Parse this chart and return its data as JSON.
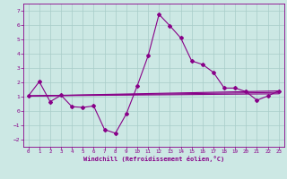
{
  "title": "",
  "xlabel": "Windchill (Refroidissement éolien,°C)",
  "background_color": "#cce8e4",
  "grid_color": "#a8ccc8",
  "line_color": "#880088",
  "xlim": [
    -0.5,
    23.5
  ],
  "ylim": [
    -2.5,
    7.5
  ],
  "yticks": [
    -2,
    -1,
    0,
    1,
    2,
    3,
    4,
    5,
    6,
    7
  ],
  "xticks": [
    0,
    1,
    2,
    3,
    4,
    5,
    6,
    7,
    8,
    9,
    10,
    11,
    12,
    13,
    14,
    15,
    16,
    17,
    18,
    19,
    20,
    21,
    22,
    23
  ],
  "series1_x": [
    0,
    1,
    2,
    3,
    4,
    5,
    6,
    7,
    8,
    9,
    10,
    11,
    12,
    13,
    14,
    15,
    16,
    17,
    18,
    19,
    20,
    21,
    22,
    23
  ],
  "series1_y": [
    1.05,
    2.05,
    0.65,
    1.1,
    0.3,
    0.25,
    0.35,
    -1.3,
    -1.55,
    -0.2,
    1.75,
    3.85,
    6.75,
    5.95,
    5.1,
    3.5,
    3.25,
    2.7,
    1.6,
    1.6,
    1.35,
    0.75,
    1.05,
    1.4
  ],
  "line2_x": [
    0,
    23
  ],
  "line2_y": [
    1.05,
    1.4
  ],
  "line3_x": [
    0,
    23
  ],
  "line3_y": [
    1.05,
    1.3
  ],
  "line4_x": [
    0,
    23
  ],
  "line4_y": [
    1.05,
    1.2
  ]
}
